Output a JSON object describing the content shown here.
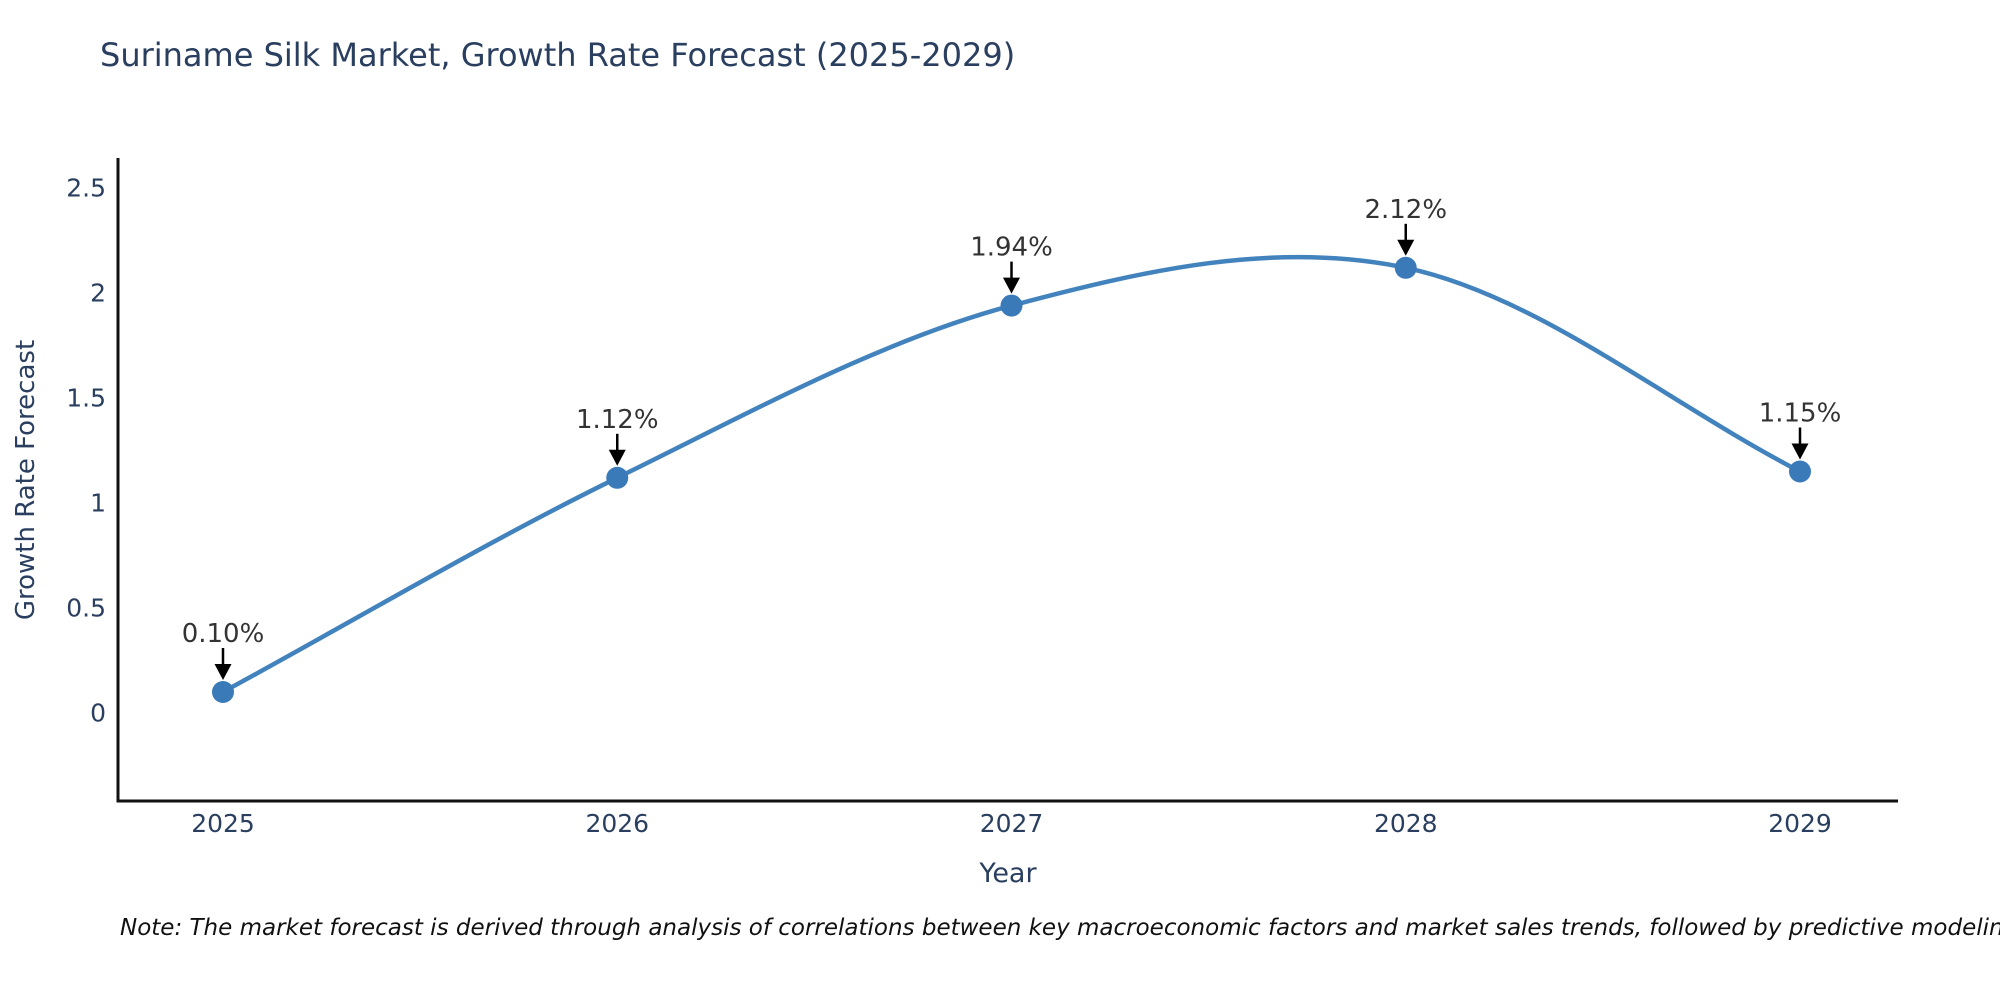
{
  "title": "Suriname Silk Market, Growth Rate Forecast (2025-2029)",
  "note": "Note: The market forecast is derived through analysis of correlations between key macroeconomic factors and market sales trends, followed by predictive modeling to project future sales",
  "chart_data": {
    "type": "line",
    "line_shape": "spline",
    "title": "Suriname Silk Market, Growth Rate Forecast (2025-2029)",
    "xlabel": "Year",
    "ylabel": "Growth Rate Forecast",
    "x": [
      2025,
      2026,
      2027,
      2028,
      2029
    ],
    "values": [
      0.1,
      1.12,
      1.94,
      2.12,
      1.15
    ],
    "point_labels": [
      "0.10%",
      "1.12%",
      "1.94%",
      "2.12%",
      "1.15%"
    ],
    "yticks": [
      0,
      0.5,
      1,
      1.5,
      2,
      2.5
    ],
    "ylim": [
      -0.42,
      2.64
    ],
    "grid": false,
    "legend": "none",
    "markers": true,
    "annotation_arrows": true,
    "colors": {
      "line": "#4383bd",
      "marker": "#3a7ab9",
      "axis": "#111111",
      "tick_label": "#2a3f5f",
      "axis_title": "#2a3f5f",
      "title": "#2a3f5f",
      "annotation": "#333333",
      "arrow": "#000000",
      "background": "#ffffff"
    }
  }
}
